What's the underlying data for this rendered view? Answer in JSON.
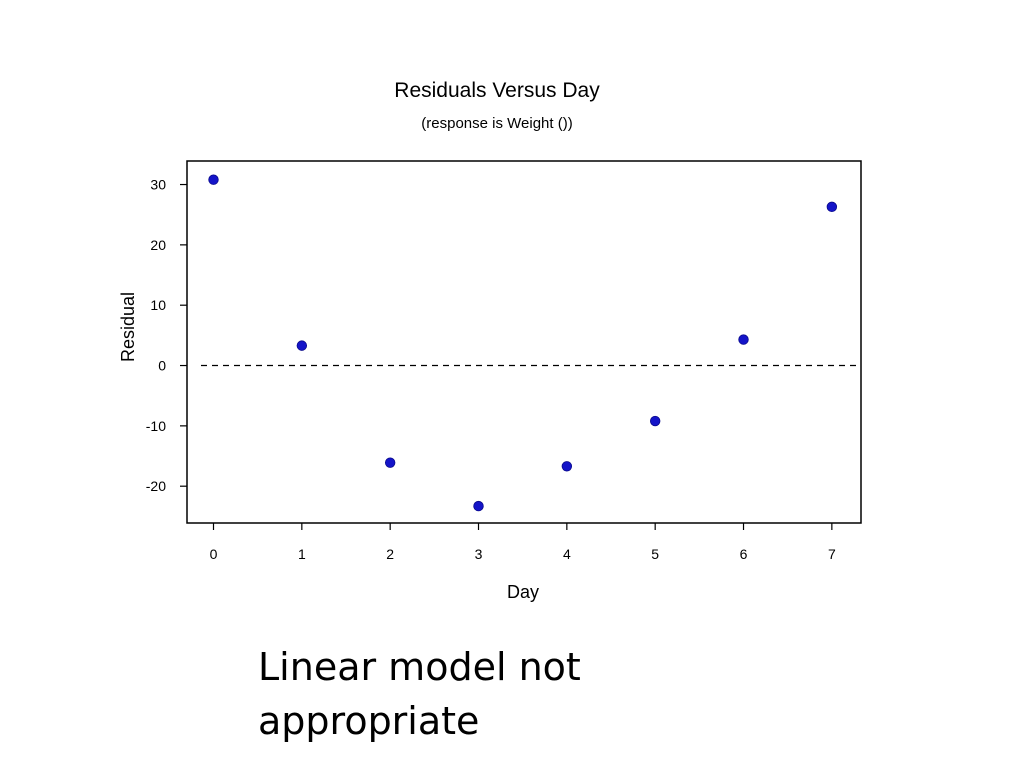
{
  "slide": {
    "caption": "Linear model not appropriate"
  },
  "chart_data": {
    "type": "scatter",
    "title": "Residuals Versus Day",
    "subtitle": "(response is Weight ())",
    "xlabel": "Day",
    "ylabel": "Residual",
    "x": [
      0,
      1,
      2,
      3,
      4,
      5,
      6,
      7
    ],
    "y": [
      30.8,
      3.3,
      -16.1,
      -23.3,
      -16.7,
      -9.2,
      4.3,
      26.3
    ],
    "xlim": [
      -0.3,
      7.33
    ],
    "ylim": [
      -26.1,
      33.9
    ],
    "xticks": [
      0,
      1,
      2,
      3,
      4,
      5,
      6,
      7
    ],
    "yticks": [
      30,
      20,
      10,
      0,
      -10,
      -20
    ],
    "reference_line": {
      "y": 0,
      "style": "dashed"
    },
    "grid": false,
    "legend": "none",
    "marker_color": "#1414c8"
  }
}
